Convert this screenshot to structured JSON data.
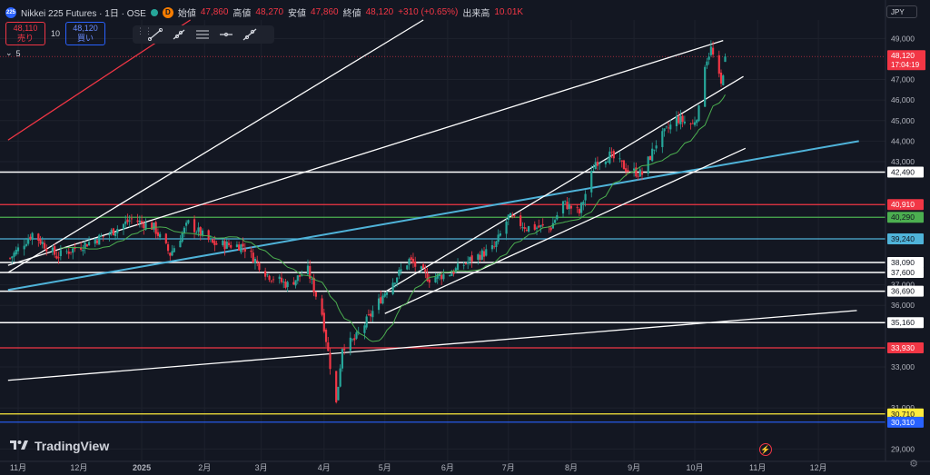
{
  "header": {
    "symbol_badge": "225",
    "title": "Nikkei 225 Futures · 1日 · OSE",
    "d_badge": "D",
    "ohlc": [
      {
        "label": "始値",
        "value": "47,860"
      },
      {
        "label": "高値",
        "value": "48,270"
      },
      {
        "label": "安値",
        "value": "47,860"
      },
      {
        "label": "終値",
        "value": "48,120"
      }
    ],
    "change": "+310 (+0.65%)",
    "volume_label": "出来高",
    "volume_value": "10.01K"
  },
  "trade": {
    "sell_price": "48,110",
    "sell_label": "売り",
    "spread": "10",
    "buy_price": "48,120",
    "buy_label": "買い"
  },
  "indicator_toggle": "5",
  "currency": "JPY",
  "brand": "TradingView",
  "colors": {
    "bg": "#131722",
    "up": "#26a69a",
    "down": "#f23645",
    "ma": "#4caf50",
    "grid": "#1e222d",
    "axis_text": "#b2b5be"
  },
  "chart_data": {
    "type": "candlestick",
    "title": "Nikkei 225 Futures · 1日 · OSE",
    "y_ticks": [
      29000,
      31000,
      33000,
      36000,
      37000,
      43000,
      44000,
      45000,
      46000,
      47000,
      49000
    ],
    "y_tick_labels": [
      "29,000",
      "31,000",
      "33,000",
      "36,000",
      "37,000",
      "43,000",
      "44,000",
      "45,000",
      "46,000",
      "47,000",
      "49,000"
    ],
    "ylim": [
      28400,
      49900
    ],
    "x_ticks": [
      "11月",
      "12月",
      "2025",
      "2月",
      "3月",
      "4月",
      "5月",
      "6月",
      "7月",
      "8月",
      "9月",
      "10月",
      "11月",
      "12月"
    ],
    "x_range": [
      "2024-11-01",
      "2025-12-31"
    ],
    "grid": true,
    "current_price": {
      "label": "48,120",
      "time": "17:04:19",
      "value": 48120
    },
    "horizontal_levels": [
      {
        "value": 42490,
        "label": "42,490",
        "color": "#ffffff"
      },
      {
        "value": 40910,
        "label": "40,910",
        "color": "#f23645"
      },
      {
        "value": 40290,
        "label": "40,290",
        "color": "#4caf50"
      },
      {
        "value": 39240,
        "label": "39,240",
        "color": "#4fb3d9"
      },
      {
        "value": 38090,
        "label": "38,090",
        "color": "#ffffff"
      },
      {
        "value": 37600,
        "label": "37,600",
        "color": "#ffffff"
      },
      {
        "value": 36690,
        "label": "36,690",
        "color": "#ffffff"
      },
      {
        "value": 35160,
        "label": "35,160",
        "color": "#ffffff"
      },
      {
        "value": 33930,
        "label": "33,930",
        "color": "#f23645"
      },
      {
        "value": 30710,
        "label": "30,710",
        "color": "#ffeb3b"
      },
      {
        "value": 30310,
        "label": "30,310",
        "color": "#2962ff"
      }
    ],
    "trendlines": [
      {
        "color": "#f23645",
        "points": [
          [
            "2024-10-27",
            44050
          ],
          [
            "2025-01-25",
            49900
          ]
        ]
      },
      {
        "color": "#ffffff",
        "points": [
          [
            "2024-10-27",
            37600
          ],
          [
            "2025-05-20",
            49900
          ]
        ]
      },
      {
        "color": "#4fb3d9",
        "points": [
          [
            "2024-10-27",
            36750
          ],
          [
            "2025-12-21",
            44000
          ]
        ]
      },
      {
        "color": "#ffffff",
        "points": [
          [
            "2024-10-27",
            32350
          ],
          [
            "2025-12-20",
            35750
          ]
        ]
      },
      {
        "color": "#ffffff",
        "points": [
          [
            "2024-10-27",
            37950
          ],
          [
            "2025-10-15",
            48900
          ]
        ]
      },
      {
        "color": "#ffffff",
        "points": [
          [
            "2025-05-01",
            36650
          ],
          [
            "2025-10-25",
            47150
          ]
        ]
      },
      {
        "color": "#ffffff",
        "points": [
          [
            "2025-05-01",
            35600
          ],
          [
            "2025-10-26",
            43650
          ]
        ]
      }
    ],
    "moving_average_color": "#4caf50",
    "candles_note": "Daily OHLC series (approx.) generated from anchor closes below",
    "anchors": [
      [
        "2024-10-28",
        38300
      ],
      [
        "2024-11-08",
        39500
      ],
      [
        "2024-11-20",
        38400
      ],
      [
        "2024-12-02",
        38900
      ],
      [
        "2024-12-16",
        39500
      ],
      [
        "2024-12-27",
        40200
      ],
      [
        "2025-01-07",
        39800
      ],
      [
        "2025-01-15",
        38500
      ],
      [
        "2025-01-24",
        40000
      ],
      [
        "2025-02-05",
        39000
      ],
      [
        "2025-02-20",
        38900
      ],
      [
        "2025-03-04",
        37500
      ],
      [
        "2025-03-14",
        37000
      ],
      [
        "2025-03-24",
        37700
      ],
      [
        "2025-03-31",
        35600
      ],
      [
        "2025-04-07",
        31200
      ],
      [
        "2025-04-10",
        34000
      ],
      [
        "2025-04-16",
        34300
      ],
      [
        "2025-04-25",
        35700
      ],
      [
        "2025-05-02",
        36800
      ],
      [
        "2025-05-13",
        38200
      ],
      [
        "2025-05-23",
        37300
      ],
      [
        "2025-06-03",
        37600
      ],
      [
        "2025-06-12",
        38200
      ],
      [
        "2025-06-24",
        38800
      ],
      [
        "2025-07-01",
        40300
      ],
      [
        "2025-07-10",
        39800
      ],
      [
        "2025-07-22",
        39800
      ],
      [
        "2025-07-28",
        41000
      ],
      [
        "2025-08-05",
        40500
      ],
      [
        "2025-08-13",
        43000
      ],
      [
        "2025-08-20",
        43300
      ],
      [
        "2025-08-29",
        42600
      ],
      [
        "2025-09-05",
        42400
      ],
      [
        "2025-09-12",
        43900
      ],
      [
        "2025-09-22",
        45100
      ],
      [
        "2025-09-30",
        44800
      ],
      [
        "2025-10-03",
        45500
      ],
      [
        "2025-10-06",
        47800
      ],
      [
        "2025-10-09",
        48500
      ],
      [
        "2025-10-14",
        46700
      ],
      [
        "2025-10-16",
        48120
      ]
    ]
  }
}
